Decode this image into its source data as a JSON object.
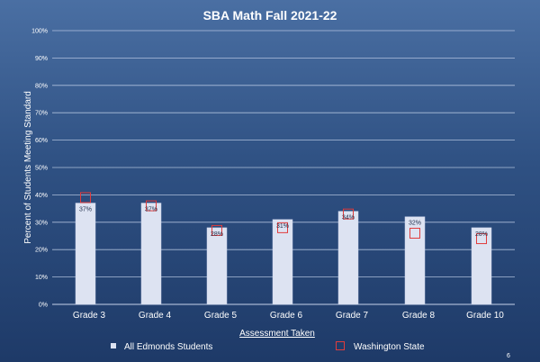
{
  "page_number": "6",
  "colors": {
    "bar": "#dde3f2",
    "bar_stroke": "#c9d2ea",
    "state_marker": "#e03c3c",
    "grid": "#c4d2ea",
    "text": "#ffffff",
    "data_label": "#1f2d4a"
  },
  "chart_data": {
    "type": "bar",
    "title": "SBA Math Fall 2021-22",
    "xlabel": "Assessment Taken",
    "ylabel": "Percent of Students Meeting Standard",
    "ylim": [
      0,
      100
    ],
    "yticks": [
      "0%",
      "10%",
      "20%",
      "30%",
      "40%",
      "50%",
      "60%",
      "70%",
      "80%",
      "90%",
      "100%"
    ],
    "grid": true,
    "legend_position": "bottom",
    "categories": [
      "Grade 3",
      "Grade 4",
      "Grade 5",
      "Grade 6",
      "Grade 7",
      "Grade 8",
      "Grade 10"
    ],
    "series": [
      {
        "name": "All Edmonds Students",
        "kind": "bar",
        "values": [
          37,
          37,
          28,
          31,
          34,
          32,
          28
        ],
        "labels": [
          "37%",
          "37%",
          "28%",
          "31%",
          "34%",
          "32%",
          "28%"
        ]
      },
      {
        "name": "Washington State",
        "kind": "marker",
        "values": [
          39,
          36,
          27,
          28,
          33,
          26,
          24
        ]
      }
    ]
  }
}
